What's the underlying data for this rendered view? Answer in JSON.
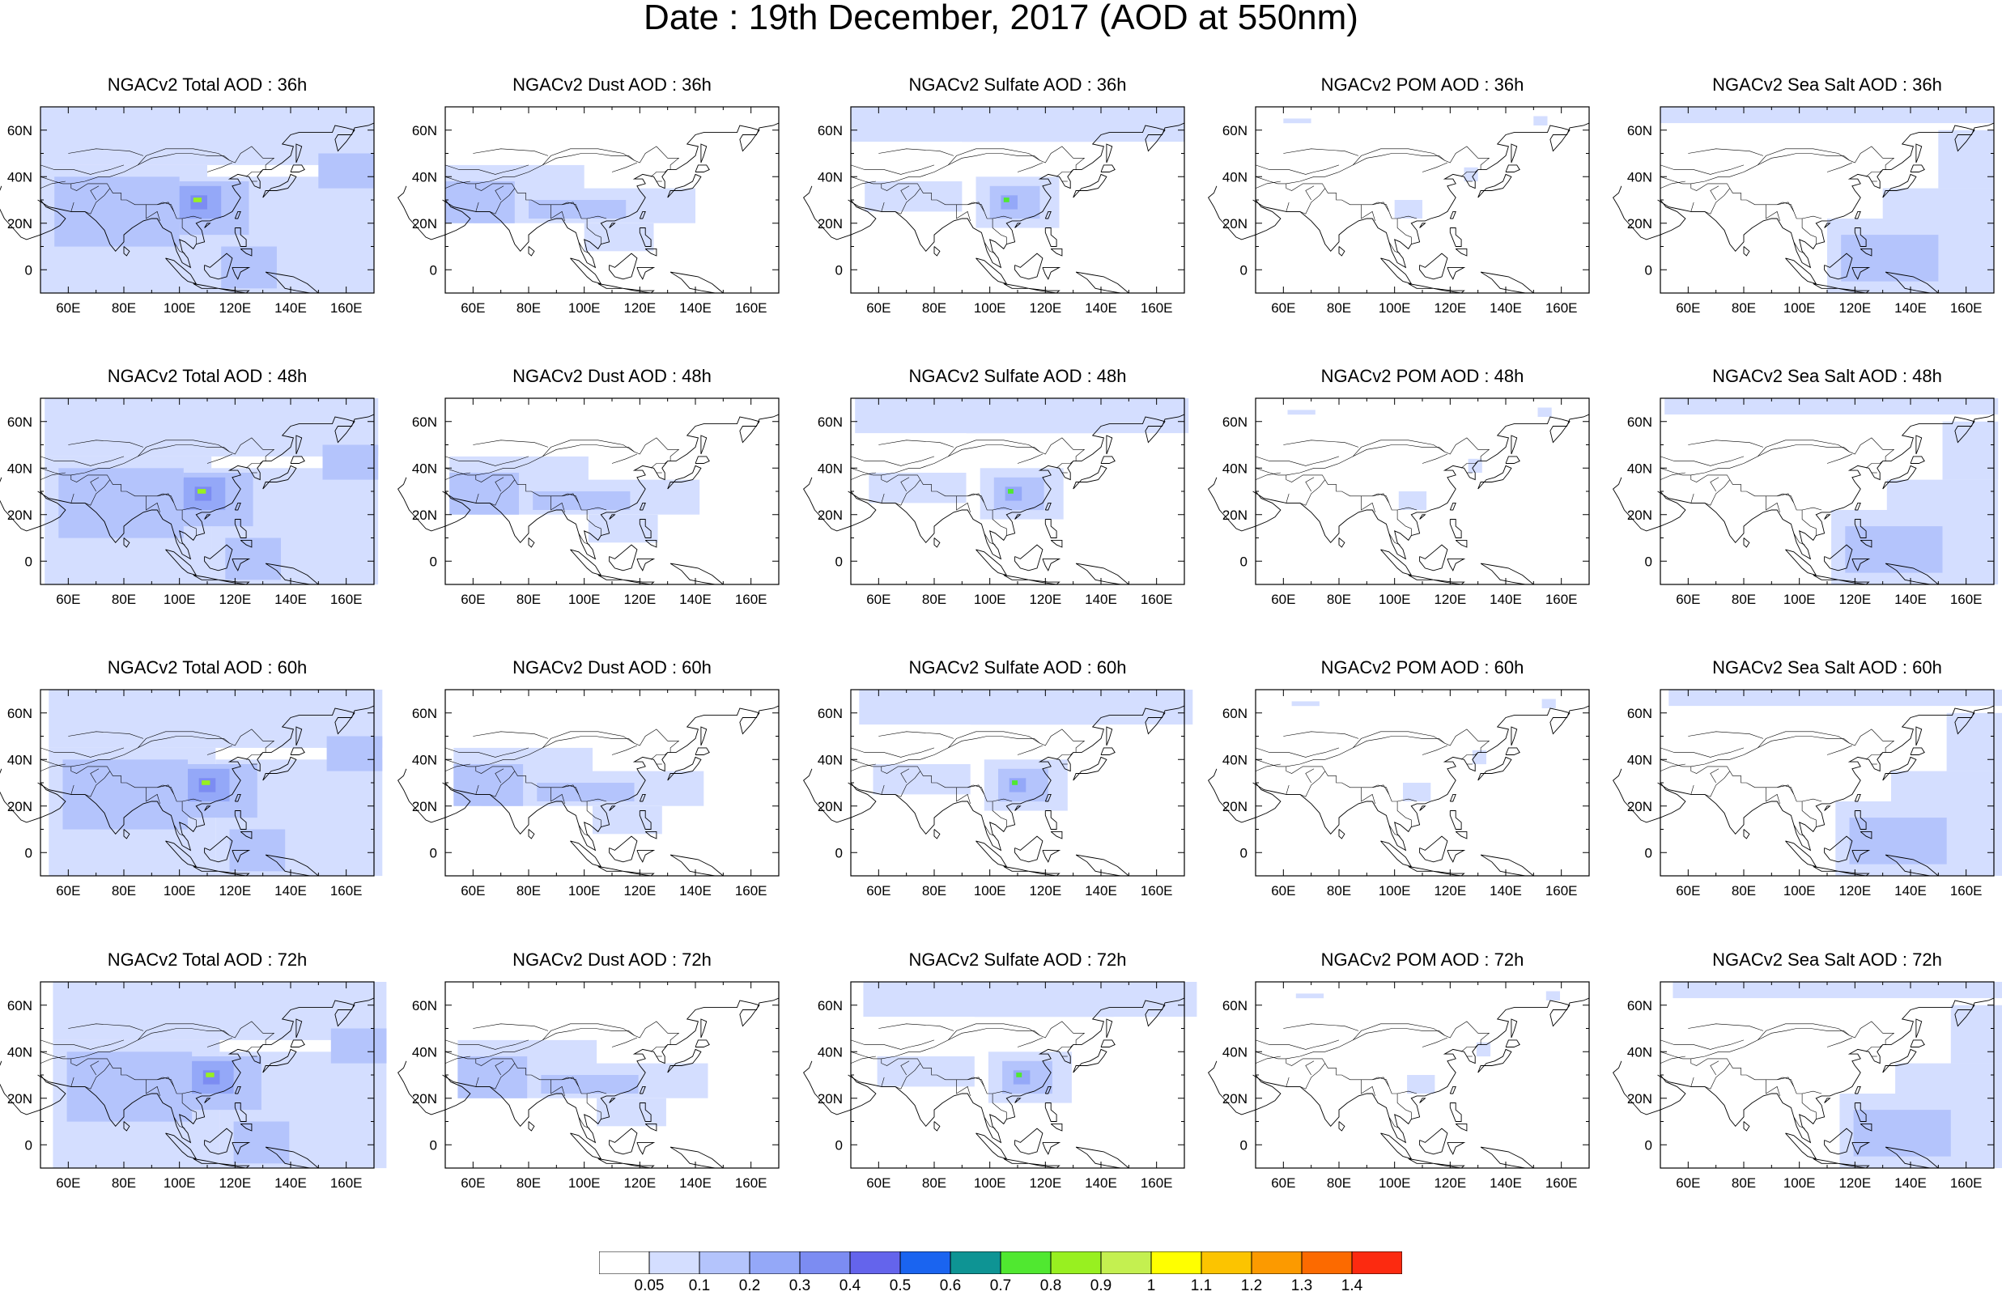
{
  "title": "Date : 19th December, 2017 (AOD at 550nm)",
  "lon_ticks": [
    "60E",
    "80E",
    "100E",
    "120E",
    "140E",
    "160E"
  ],
  "lat_ticks": [
    "60N",
    "40N",
    "20N",
    "0"
  ],
  "map_extent": {
    "lon": [
      50,
      170
    ],
    "lat": [
      -10,
      70
    ]
  },
  "panels": [
    {
      "title": "NGACv2 Total AOD : 36h",
      "species": "total",
      "hour": 36
    },
    {
      "title": "NGACv2 Dust AOD : 36h",
      "species": "dust",
      "hour": 36
    },
    {
      "title": "NGACv2 Sulfate AOD : 36h",
      "species": "sulfate",
      "hour": 36
    },
    {
      "title": "NGACv2 POM AOD : 36h",
      "species": "pom",
      "hour": 36
    },
    {
      "title": "NGACv2 Sea Salt AOD : 36h",
      "species": "seasalt",
      "hour": 36
    },
    {
      "title": "NGACv2 Total AOD : 48h",
      "species": "total",
      "hour": 48
    },
    {
      "title": "NGACv2 Dust AOD : 48h",
      "species": "dust",
      "hour": 48
    },
    {
      "title": "NGACv2 Sulfate AOD : 48h",
      "species": "sulfate",
      "hour": 48
    },
    {
      "title": "NGACv2 POM AOD : 48h",
      "species": "pom",
      "hour": 48
    },
    {
      "title": "NGACv2 Sea Salt AOD : 48h",
      "species": "seasalt",
      "hour": 48
    },
    {
      "title": "NGACv2 Total AOD : 60h",
      "species": "total",
      "hour": 60
    },
    {
      "title": "NGACv2 Dust AOD : 60h",
      "species": "dust",
      "hour": 60
    },
    {
      "title": "NGACv2 Sulfate AOD : 60h",
      "species": "sulfate",
      "hour": 60
    },
    {
      "title": "NGACv2 POM AOD : 60h",
      "species": "pom",
      "hour": 60
    },
    {
      "title": "NGACv2 Sea Salt AOD : 60h",
      "species": "seasalt",
      "hour": 60
    },
    {
      "title": "NGACv2 Total AOD : 72h",
      "species": "total",
      "hour": 72
    },
    {
      "title": "NGACv2 Dust AOD : 72h",
      "species": "dust",
      "hour": 72
    },
    {
      "title": "NGACv2 Sulfate AOD : 72h",
      "species": "sulfate",
      "hour": 72
    },
    {
      "title": "NGACv2 POM AOD : 72h",
      "species": "pom",
      "hour": 72
    },
    {
      "title": "NGACv2 Sea Salt  AOD : 72h",
      "species": "seasalt",
      "hour": 72
    }
  ],
  "colorbar": {
    "labels": [
      "0.05",
      "0.1",
      "0.2",
      "0.3",
      "0.4",
      "0.5",
      "0.6",
      "0.7",
      "0.8",
      "0.9",
      "1",
      "1.1",
      "1.2",
      "1.3",
      "1.4"
    ],
    "colors": [
      "#ffffff",
      "#d4deff",
      "#b4c4fc",
      "#94a8f8",
      "#7c8cf2",
      "#6464ec",
      "#1a64f0",
      "#0e9494",
      "#50e830",
      "#98f020",
      "#c4f050",
      "#ffff00",
      "#fcc400",
      "#fc9a00",
      "#fc6a00",
      "#fc2a10"
    ]
  }
}
